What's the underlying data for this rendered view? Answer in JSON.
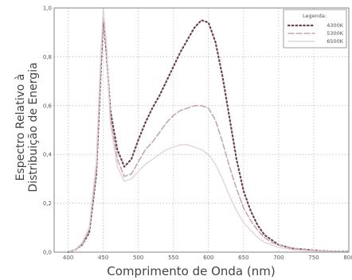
{
  "chart_data": {
    "type": "line",
    "xlabel": "Comprimento de Onda (nm)",
    "ylabel_line1": "Espectro Relativo à",
    "ylabel_line2": "Distribuição de Energia",
    "xlim": [
      380,
      800
    ],
    "ylim": [
      0.0,
      1.0
    ],
    "x_ticks": [
      "400",
      "450",
      "500",
      "550",
      "600",
      "650",
      "700",
      "750",
      "800"
    ],
    "y_ticks": [
      "0,0",
      "0,2",
      "0,4",
      "0,6",
      "0,8",
      "1,0"
    ],
    "grid": true,
    "legend_title": "Legenda:",
    "legend_position": "top-right",
    "series": [
      {
        "name": "4300K",
        "color": "#6e4250",
        "dash": "dot",
        "x": [
          400,
          410,
          420,
          430,
          440,
          445,
          450,
          455,
          460,
          470,
          480,
          490,
          500,
          510,
          520,
          530,
          540,
          550,
          560,
          570,
          580,
          590,
          600,
          610,
          620,
          630,
          640,
          650,
          660,
          670,
          680,
          690,
          700,
          720,
          740,
          760,
          780,
          800
        ],
        "y": [
          0.0,
          0.01,
          0.03,
          0.08,
          0.32,
          0.65,
          0.97,
          0.8,
          0.58,
          0.42,
          0.35,
          0.38,
          0.46,
          0.53,
          0.59,
          0.64,
          0.7,
          0.76,
          0.82,
          0.87,
          0.92,
          0.95,
          0.94,
          0.86,
          0.72,
          0.55,
          0.38,
          0.25,
          0.17,
          0.11,
          0.07,
          0.05,
          0.03,
          0.015,
          0.01,
          0.005,
          0.003,
          0.002
        ]
      },
      {
        "name": "5300K",
        "color": "#c4a8ae",
        "dash": "dash",
        "x": [
          400,
          410,
          420,
          430,
          440,
          445,
          450,
          455,
          460,
          470,
          480,
          490,
          500,
          510,
          520,
          530,
          540,
          550,
          560,
          570,
          580,
          590,
          600,
          610,
          620,
          630,
          640,
          650,
          660,
          670,
          680,
          690,
          700,
          720,
          740,
          760,
          780,
          800
        ],
        "y": [
          0.0,
          0.01,
          0.03,
          0.09,
          0.34,
          0.68,
          0.98,
          0.82,
          0.55,
          0.38,
          0.31,
          0.32,
          0.37,
          0.42,
          0.45,
          0.49,
          0.53,
          0.56,
          0.58,
          0.59,
          0.6,
          0.6,
          0.59,
          0.54,
          0.45,
          0.35,
          0.26,
          0.18,
          0.13,
          0.09,
          0.06,
          0.04,
          0.03,
          0.015,
          0.01,
          0.005,
          0.003,
          0.002
        ]
      },
      {
        "name": "6500K",
        "color": "#e5d2d6",
        "dash": "solid",
        "x": [
          400,
          410,
          420,
          430,
          440,
          445,
          450,
          455,
          460,
          470,
          480,
          490,
          500,
          510,
          520,
          530,
          540,
          550,
          560,
          570,
          580,
          590,
          600,
          610,
          620,
          630,
          640,
          650,
          660,
          670,
          680,
          690,
          700,
          720,
          740,
          760,
          780,
          800
        ],
        "y": [
          0.0,
          0.01,
          0.04,
          0.1,
          0.37,
          0.72,
          1.0,
          0.83,
          0.53,
          0.35,
          0.29,
          0.3,
          0.33,
          0.36,
          0.38,
          0.4,
          0.42,
          0.43,
          0.44,
          0.44,
          0.43,
          0.42,
          0.4,
          0.36,
          0.3,
          0.23,
          0.17,
          0.12,
          0.09,
          0.06,
          0.04,
          0.03,
          0.02,
          0.01,
          0.006,
          0.004,
          0.002,
          0.001
        ]
      }
    ]
  }
}
